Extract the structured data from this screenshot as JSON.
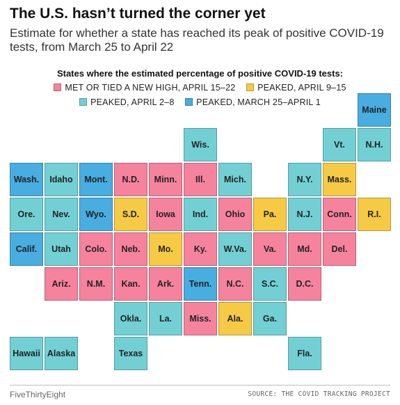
{
  "header": {
    "title": "The U.S. hasn’t turned the corner yet",
    "subtitle": "Estimate for whether a state has reached its peak of positive COVID-19 tests, from March 25 to April 22"
  },
  "legend": {
    "title": "States where the estimated percentage of positive COVID-19 tests:",
    "items": [
      {
        "key": "new_high",
        "label": "MET OR TIED A NEW HIGH, APRIL 15–22",
        "color": "#f5839e"
      },
      {
        "key": "apr9_15",
        "label": "PEAKED, APRIL 9–15",
        "color": "#f6ca45"
      },
      {
        "key": "apr2_8",
        "label": "PEAKED, APRIL 2–8",
        "color": "#72d0d4"
      },
      {
        "key": "mar25_apr1",
        "label": "PEAKED, MARCH 25–APRIL 1",
        "color": "#48ade1"
      }
    ]
  },
  "chart_data": {
    "type": "tile-grid-map",
    "categories": [
      "MET OR TIED A NEW HIGH, APRIL 15–22",
      "PEAKED, APRIL 9–15",
      "PEAKED, APRIL 2–8",
      "PEAKED, MARCH 25–APRIL 1"
    ],
    "states": [
      {
        "name": "Maine",
        "row": 0,
        "col": 10,
        "status": "mar25_apr1"
      },
      {
        "name": "Wis.",
        "row": 1,
        "col": 5,
        "status": "apr2_8"
      },
      {
        "name": "Vt.",
        "row": 1,
        "col": 9,
        "status": "apr2_8"
      },
      {
        "name": "N.H.",
        "row": 1,
        "col": 10,
        "status": "apr2_8"
      },
      {
        "name": "Wash.",
        "row": 2,
        "col": 0,
        "status": "mar25_apr1"
      },
      {
        "name": "Idaho",
        "row": 2,
        "col": 1,
        "status": "apr2_8"
      },
      {
        "name": "Mont.",
        "row": 2,
        "col": 2,
        "status": "mar25_apr1"
      },
      {
        "name": "N.D.",
        "row": 2,
        "col": 3,
        "status": "new_high"
      },
      {
        "name": "Minn.",
        "row": 2,
        "col": 4,
        "status": "new_high"
      },
      {
        "name": "Ill.",
        "row": 2,
        "col": 5,
        "status": "new_high"
      },
      {
        "name": "Mich.",
        "row": 2,
        "col": 6,
        "status": "apr2_8"
      },
      {
        "name": "N.Y.",
        "row": 2,
        "col": 8,
        "status": "apr2_8"
      },
      {
        "name": "Mass.",
        "row": 2,
        "col": 9,
        "status": "apr9_15"
      },
      {
        "name": "Ore.",
        "row": 3,
        "col": 0,
        "status": "apr2_8"
      },
      {
        "name": "Nev.",
        "row": 3,
        "col": 1,
        "status": "apr2_8"
      },
      {
        "name": "Wyo.",
        "row": 3,
        "col": 2,
        "status": "mar25_apr1"
      },
      {
        "name": "S.D.",
        "row": 3,
        "col": 3,
        "status": "apr9_15"
      },
      {
        "name": "Iowa",
        "row": 3,
        "col": 4,
        "status": "new_high"
      },
      {
        "name": "Ind.",
        "row": 3,
        "col": 5,
        "status": "apr2_8"
      },
      {
        "name": "Ohio",
        "row": 3,
        "col": 6,
        "status": "new_high"
      },
      {
        "name": "Pa.",
        "row": 3,
        "col": 7,
        "status": "apr9_15"
      },
      {
        "name": "N.J.",
        "row": 3,
        "col": 8,
        "status": "apr2_8"
      },
      {
        "name": "Conn.",
        "row": 3,
        "col": 9,
        "status": "new_high"
      },
      {
        "name": "R.I.",
        "row": 3,
        "col": 10,
        "status": "apr9_15"
      },
      {
        "name": "Calif.",
        "row": 4,
        "col": 0,
        "status": "mar25_apr1"
      },
      {
        "name": "Utah",
        "row": 4,
        "col": 1,
        "status": "apr2_8"
      },
      {
        "name": "Colo.",
        "row": 4,
        "col": 2,
        "status": "new_high"
      },
      {
        "name": "Neb.",
        "row": 4,
        "col": 3,
        "status": "new_high"
      },
      {
        "name": "Mo.",
        "row": 4,
        "col": 4,
        "status": "apr9_15"
      },
      {
        "name": "Ky.",
        "row": 4,
        "col": 5,
        "status": "new_high"
      },
      {
        "name": "W.Va.",
        "row": 4,
        "col": 6,
        "status": "apr2_8"
      },
      {
        "name": "Va.",
        "row": 4,
        "col": 7,
        "status": "new_high"
      },
      {
        "name": "Md.",
        "row": 4,
        "col": 8,
        "status": "new_high"
      },
      {
        "name": "Del.",
        "row": 4,
        "col": 9,
        "status": "new_high"
      },
      {
        "name": "Ariz.",
        "row": 5,
        "col": 1,
        "status": "new_high"
      },
      {
        "name": "N.M.",
        "row": 5,
        "col": 2,
        "status": "new_high"
      },
      {
        "name": "Kan.",
        "row": 5,
        "col": 3,
        "status": "new_high"
      },
      {
        "name": "Ark.",
        "row": 5,
        "col": 4,
        "status": "new_high"
      },
      {
        "name": "Tenn.",
        "row": 5,
        "col": 5,
        "status": "mar25_apr1"
      },
      {
        "name": "N.C.",
        "row": 5,
        "col": 6,
        "status": "new_high"
      },
      {
        "name": "S.C.",
        "row": 5,
        "col": 7,
        "status": "apr2_8"
      },
      {
        "name": "D.C.",
        "row": 5,
        "col": 8,
        "status": "new_high"
      },
      {
        "name": "Okla.",
        "row": 6,
        "col": 3,
        "status": "apr2_8"
      },
      {
        "name": "La.",
        "row": 6,
        "col": 4,
        "status": "apr2_8"
      },
      {
        "name": "Miss.",
        "row": 6,
        "col": 5,
        "status": "new_high"
      },
      {
        "name": "Ala.",
        "row": 6,
        "col": 6,
        "status": "apr9_15"
      },
      {
        "name": "Ga.",
        "row": 6,
        "col": 7,
        "status": "apr2_8"
      },
      {
        "name": "Hawaii",
        "row": 7,
        "col": 0,
        "status": "apr2_8"
      },
      {
        "name": "Alaska",
        "row": 7,
        "col": 1,
        "status": "apr2_8"
      },
      {
        "name": "Texas",
        "row": 7,
        "col": 3,
        "status": "apr2_8"
      },
      {
        "name": "Fla.",
        "row": 7,
        "col": 8,
        "status": "apr2_8"
      }
    ]
  },
  "footer": {
    "brand": "FiveThirtyEight",
    "source": "SOURCE: THE COVID TRACKING PROJECT"
  }
}
